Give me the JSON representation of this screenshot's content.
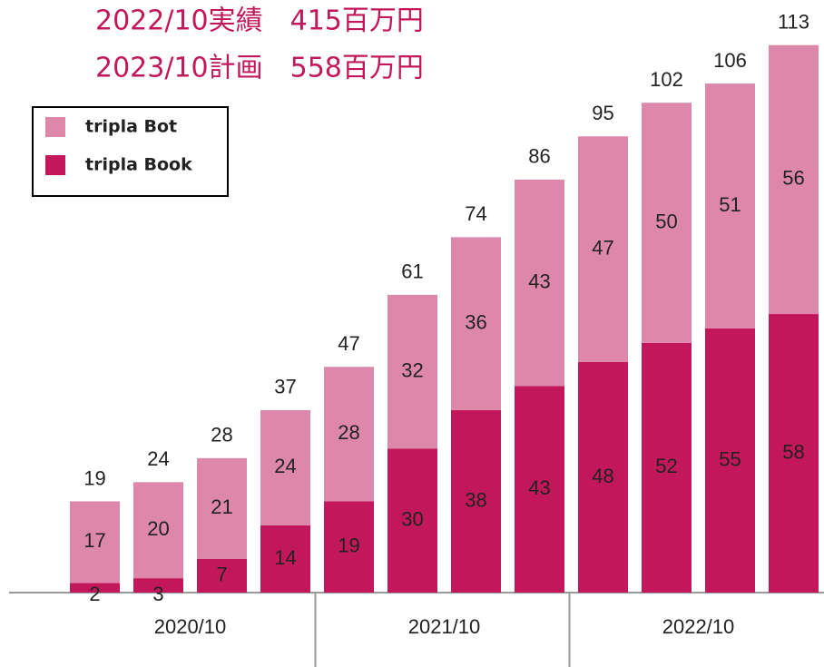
{
  "chart_data": {
    "type": "stacked_bar",
    "title_lines": [
      "2022/10実績　415百万円",
      "2023/10計画　558百万円"
    ],
    "categories": [
      null,
      null,
      null,
      null,
      null,
      null,
      null,
      null,
      null,
      null,
      null,
      null
    ],
    "group_labels": [
      "2020/10",
      "2021/10",
      "2022/10"
    ],
    "series": [
      {
        "name": "tripla Book",
        "color": "#c2185b",
        "values": [
          2,
          3,
          7,
          14,
          19,
          30,
          38,
          43,
          48,
          52,
          55,
          58
        ]
      },
      {
        "name": "tripla Bot",
        "color": "#dd88aa",
        "values": [
          17,
          20,
          21,
          24,
          28,
          32,
          36,
          43,
          47,
          50,
          51,
          56
        ]
      }
    ],
    "totals": [
      19,
      24,
      28,
      37,
      47,
      61,
      74,
      86,
      95,
      102,
      106,
      113
    ],
    "ylim": [
      0,
      113
    ]
  }
}
